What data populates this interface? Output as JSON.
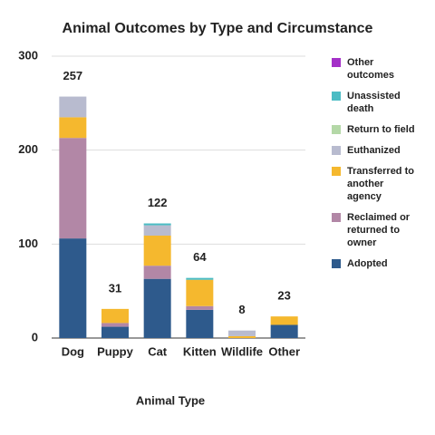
{
  "chart_data": {
    "type": "bar",
    "stacked": true,
    "title": "Animal Outcomes by Type and Circumstance",
    "x_label": "Animal Type",
    "categories": [
      "Dog",
      "Puppy",
      "Cat",
      "Kitten",
      "Wildlife",
      "Other"
    ],
    "series": [
      {
        "name": "Adopted",
        "color": "#2e5a8c",
        "values": [
          106,
          12,
          63,
          30,
          0,
          14
        ]
      },
      {
        "name": "Reclaimed or returned to owner",
        "color": "#b287a6",
        "values": [
          107,
          4,
          14,
          4,
          0,
          0
        ]
      },
      {
        "name": "Transferred to another agency",
        "color": "#f5b82e",
        "values": [
          22,
          15,
          32,
          28,
          2,
          9
        ]
      },
      {
        "name": "Euthanized",
        "color": "#b8bbcf",
        "values": [
          22,
          0,
          11,
          0,
          6,
          0
        ]
      },
      {
        "name": "Return to field",
        "color": "#b4d8a7",
        "values": [
          0,
          0,
          0,
          0,
          0,
          0
        ]
      },
      {
        "name": "Unassisted death",
        "color": "#4bbcc4",
        "values": [
          0,
          0,
          2,
          2,
          0,
          0
        ]
      },
      {
        "name": "Other outcomes",
        "color": "#a430c8",
        "values": [
          0,
          0,
          0,
          0,
          0,
          0
        ]
      }
    ],
    "totals": [
      257,
      31,
      122,
      64,
      8,
      23
    ],
    "ylim": [
      0,
      300
    ],
    "yticks": [
      0,
      100,
      200,
      300
    ],
    "grid": true,
    "legend": "right"
  }
}
